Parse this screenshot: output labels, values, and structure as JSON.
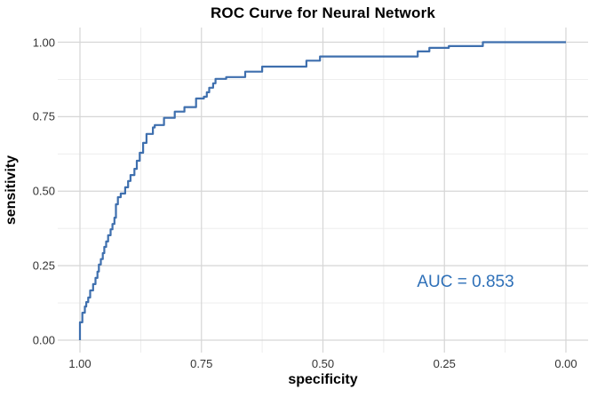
{
  "chart_data": {
    "type": "line",
    "subtype": "roc-step-curve",
    "title": "ROC Curve for Neural Network",
    "xlabel": "specificity",
    "ylabel": "sensitivity",
    "grid": "major+minor",
    "legend": "none",
    "x_axis": {
      "tick_labels": [
        "1.00",
        "0.75",
        "0.50",
        "0.25",
        "0.00"
      ],
      "tick_values": [
        1.0,
        0.75,
        0.5,
        0.25,
        0.0
      ],
      "range": [
        1.0,
        0.0
      ],
      "reversed": true
    },
    "y_axis": {
      "tick_labels": [
        "0.00",
        "0.25",
        "0.50",
        "0.75",
        "1.00"
      ],
      "tick_values": [
        0.0,
        0.25,
        0.5,
        0.75,
        1.0
      ],
      "range": [
        0.0,
        1.0
      ]
    },
    "annotation": {
      "text": "AUC = 0.853",
      "auc_value": 0.853
    },
    "series": [
      {
        "name": "roc-curve",
        "points": [
          [
            1.0,
            0.0
          ],
          [
            1.0,
            0.06
          ],
          [
            0.995,
            0.06
          ],
          [
            0.995,
            0.092
          ],
          [
            0.99,
            0.092
          ],
          [
            0.99,
            0.113
          ],
          [
            0.987,
            0.113
          ],
          [
            0.987,
            0.128
          ],
          [
            0.983,
            0.128
          ],
          [
            0.983,
            0.143
          ],
          [
            0.979,
            0.143
          ],
          [
            0.979,
            0.167
          ],
          [
            0.973,
            0.167
          ],
          [
            0.973,
            0.188
          ],
          [
            0.968,
            0.188
          ],
          [
            0.968,
            0.209
          ],
          [
            0.964,
            0.209
          ],
          [
            0.964,
            0.23
          ],
          [
            0.961,
            0.23
          ],
          [
            0.961,
            0.254
          ],
          [
            0.957,
            0.254
          ],
          [
            0.957,
            0.272
          ],
          [
            0.953,
            0.272
          ],
          [
            0.953,
            0.292
          ],
          [
            0.95,
            0.292
          ],
          [
            0.95,
            0.313
          ],
          [
            0.946,
            0.313
          ],
          [
            0.946,
            0.331
          ],
          [
            0.942,
            0.331
          ],
          [
            0.942,
            0.352
          ],
          [
            0.937,
            0.352
          ],
          [
            0.937,
            0.372
          ],
          [
            0.933,
            0.372
          ],
          [
            0.933,
            0.39
          ],
          [
            0.929,
            0.39
          ],
          [
            0.929,
            0.411
          ],
          [
            0.926,
            0.411
          ],
          [
            0.926,
            0.456
          ],
          [
            0.922,
            0.456
          ],
          [
            0.922,
            0.48
          ],
          [
            0.916,
            0.48
          ],
          [
            0.916,
            0.492
          ],
          [
            0.907,
            0.492
          ],
          [
            0.907,
            0.513
          ],
          [
            0.901,
            0.513
          ],
          [
            0.901,
            0.534
          ],
          [
            0.896,
            0.534
          ],
          [
            0.896,
            0.554
          ],
          [
            0.888,
            0.554
          ],
          [
            0.888,
            0.575
          ],
          [
            0.883,
            0.575
          ],
          [
            0.883,
            0.602
          ],
          [
            0.877,
            0.602
          ],
          [
            0.877,
            0.629
          ],
          [
            0.87,
            0.629
          ],
          [
            0.87,
            0.662
          ],
          [
            0.863,
            0.662
          ],
          [
            0.863,
            0.692
          ],
          [
            0.85,
            0.692
          ],
          [
            0.85,
            0.714
          ],
          [
            0.846,
            0.714
          ],
          [
            0.846,
            0.722
          ],
          [
            0.827,
            0.722
          ],
          [
            0.827,
            0.746
          ],
          [
            0.805,
            0.746
          ],
          [
            0.805,
            0.767
          ],
          [
            0.785,
            0.767
          ],
          [
            0.785,
            0.782
          ],
          [
            0.761,
            0.782
          ],
          [
            0.761,
            0.811
          ],
          [
            0.745,
            0.811
          ],
          [
            0.745,
            0.817
          ],
          [
            0.739,
            0.817
          ],
          [
            0.739,
            0.832
          ],
          [
            0.734,
            0.832
          ],
          [
            0.734,
            0.847
          ],
          [
            0.726,
            0.847
          ],
          [
            0.726,
            0.862
          ],
          [
            0.721,
            0.862
          ],
          [
            0.721,
            0.877
          ],
          [
            0.699,
            0.877
          ],
          [
            0.699,
            0.883
          ],
          [
            0.66,
            0.883
          ],
          [
            0.66,
            0.901
          ],
          [
            0.625,
            0.901
          ],
          [
            0.625,
            0.918
          ],
          [
            0.534,
            0.918
          ],
          [
            0.534,
            0.938
          ],
          [
            0.506,
            0.938
          ],
          [
            0.506,
            0.952
          ],
          [
            0.305,
            0.952
          ],
          [
            0.305,
            0.969
          ],
          [
            0.281,
            0.969
          ],
          [
            0.281,
            0.981
          ],
          [
            0.241,
            0.981
          ],
          [
            0.241,
            0.987
          ],
          [
            0.171,
            0.987
          ],
          [
            0.171,
            1.0
          ],
          [
            0.0,
            1.0
          ]
        ]
      }
    ],
    "colors": {
      "line": "#3E6FAE",
      "annotation": "#2E70B8",
      "grid_major": "#D6D6D6",
      "grid_minor": "#EBEBEB",
      "background": "#FFFFFF",
      "title": "#000000",
      "tick_label": "#333333"
    }
  }
}
